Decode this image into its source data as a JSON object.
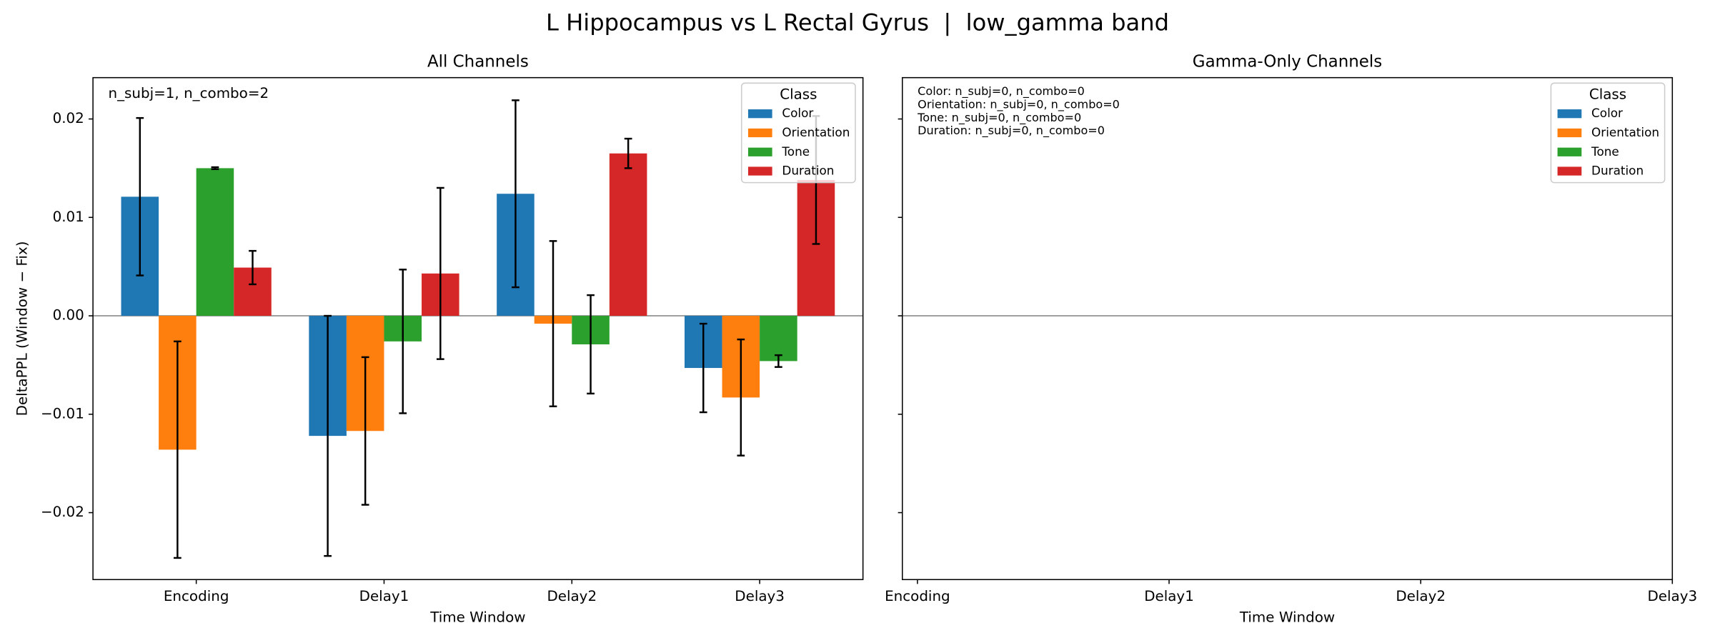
{
  "title": "L Hippocampus vs L Rectal Gyrus  |  low_gamma band",
  "chart_data": [
    {
      "type": "bar",
      "title": "All Channels",
      "xlabel": "Time Window",
      "ylabel": "DeltaPPL (Window − Fix)",
      "annotation": [
        "n_subj=1, n_combo=2"
      ],
      "categories": [
        "Encoding",
        "Delay1",
        "Delay2",
        "Delay3"
      ],
      "ylim": [
        -0.0268,
        0.0242
      ],
      "yticks": [
        {
          "value": -0.02,
          "label": "−0.02"
        },
        {
          "value": -0.01,
          "label": "−0.01"
        },
        {
          "value": 0,
          "label": "0.00"
        },
        0.01,
        0.02
      ],
      "show_ytick_labels": true,
      "zero_line": true,
      "legend_title": "Class",
      "legend": "upper right",
      "series": [
        {
          "name": "Color",
          "color": "#1f77b4",
          "values": [
            0.0121,
            -0.0122,
            0.0124,
            -0.0053
          ],
          "errors": [
            0.008,
            0.0122,
            0.0095,
            0.0045
          ]
        },
        {
          "name": "Orientation",
          "color": "#ff7f0e",
          "values": [
            -0.0136,
            -0.0117,
            -0.0008,
            -0.0083
          ],
          "errors": [
            0.011,
            0.0075,
            0.0084,
            0.0059
          ]
        },
        {
          "name": "Tone",
          "color": "#2ca02c",
          "values": [
            0.015,
            -0.0026,
            -0.0029,
            -0.0046
          ],
          "errors": [
            0.0001,
            0.0073,
            0.005,
            0.0006
          ]
        },
        {
          "name": "Duration",
          "color": "#d62728",
          "values": [
            0.0049,
            0.0043,
            0.0165,
            0.0138
          ],
          "errors": [
            0.0017,
            0.0087,
            0.0015,
            0.0065
          ]
        }
      ]
    },
    {
      "type": "empty",
      "title": "Gamma-Only Channels",
      "xlabel": "Time Window",
      "annotation": [
        "Color: n_subj=0, n_combo=0",
        "Orientation: n_subj=0, n_combo=0",
        "Tone: n_subj=0, n_combo=0",
        "Duration: n_subj=0, n_combo=0"
      ],
      "xlim": [
        -0.06,
        3
      ],
      "xticks": [
        {
          "value": 0,
          "label": "Encoding"
        },
        {
          "value": 1,
          "label": "Delay1"
        },
        {
          "value": 2,
          "label": "Delay2"
        },
        {
          "value": 3,
          "label": "Delay3"
        }
      ],
      "ylim": [
        -0.0268,
        0.0242
      ],
      "yticks": [
        -0.02,
        -0.01,
        0,
        0.01,
        0.02
      ],
      "show_ytick_labels": false,
      "zero_line": true,
      "legend_title": "Class",
      "legend": "upper right",
      "legend_entries": [
        {
          "name": "Color",
          "color": "#1f77b4"
        },
        {
          "name": "Orientation",
          "color": "#ff7f0e"
        },
        {
          "name": "Tone",
          "color": "#2ca02c"
        },
        {
          "name": "Duration",
          "color": "#d62728"
        }
      ]
    }
  ]
}
